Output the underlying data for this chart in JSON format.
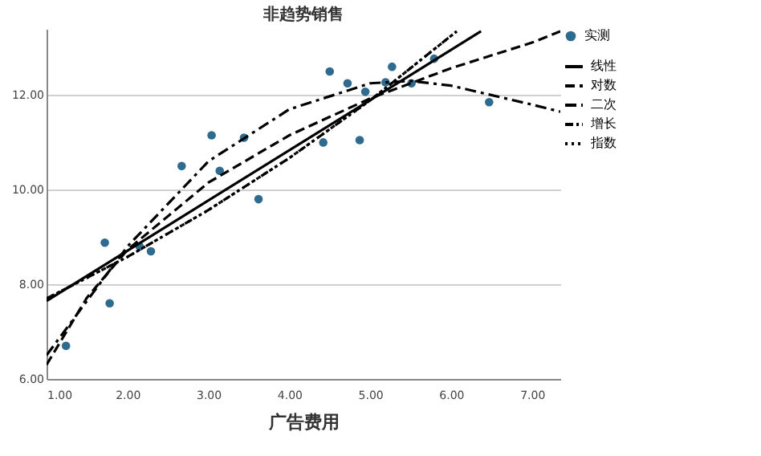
{
  "chart_data": {
    "type": "scatter",
    "title": "非趋势销售",
    "xlabel": "广告费用",
    "xlim": [
      1,
      7.35
    ],
    "ylim": [
      6,
      13.4
    ],
    "xticks": [
      {
        "value": 1,
        "label": "1.00"
      },
      {
        "value": 2,
        "label": "2.00"
      },
      {
        "value": 3,
        "label": "3.00"
      },
      {
        "value": 4,
        "label": "4.00"
      },
      {
        "value": 5,
        "label": "5.00"
      },
      {
        "value": 6,
        "label": "6.00"
      },
      {
        "value": 7,
        "label": "7.00"
      }
    ],
    "yticks": [
      {
        "value": 6,
        "label": "6.00"
      },
      {
        "value": 8,
        "label": "8.00"
      },
      {
        "value": 10,
        "label": "10.00"
      },
      {
        "value": 12,
        "label": "12.00"
      }
    ],
    "grid": "y",
    "legend": "top right",
    "series": [
      {
        "name": "实测",
        "marker": "circle",
        "color": "#2e6b8f",
        "x": [
          1.24,
          1.72,
          1.78,
          2.15,
          2.29,
          2.67,
          3.04,
          3.14,
          3.44,
          3.62,
          4.42,
          4.5,
          4.72,
          4.87,
          4.94,
          5.19,
          5.27,
          5.51,
          5.79,
          6.47
        ],
        "values": [
          6.7,
          8.88,
          7.6,
          8.8,
          8.7,
          10.5,
          11.15,
          10.4,
          11.1,
          9.8,
          11.0,
          12.5,
          12.25,
          11.05,
          12.07,
          12.27,
          12.6,
          12.25,
          12.77,
          11.85
        ]
      },
      {
        "name": "线性",
        "type": "line",
        "line_style": "solid",
        "color": "#000000",
        "x": [
          1,
          6.37
        ],
        "values": [
          7.65,
          13.35
        ]
      },
      {
        "name": "对数",
        "type": "line",
        "line_style": "dashed",
        "color": "#000000",
        "x": [
          1,
          1.5,
          2,
          3,
          4,
          5,
          6,
          7,
          7.35
        ],
        "values": [
          6.3,
          7.72,
          8.73,
          10.15,
          11.15,
          11.93,
          12.57,
          13.11,
          13.35
        ]
      },
      {
        "name": "二次",
        "type": "line",
        "line_style": "dashed",
        "color": "#000000",
        "x": [
          1,
          2,
          3,
          4,
          5,
          5.5,
          6,
          7,
          7.35
        ],
        "values": [
          6.5,
          8.8,
          10.6,
          11.7,
          12.25,
          12.3,
          12.2,
          11.8,
          11.65
        ]
      },
      {
        "name": "增长",
        "type": "line",
        "line_style": "dashed",
        "color": "#000000",
        "x": [
          1,
          2,
          3,
          4,
          5,
          6.07
        ],
        "values": [
          7.7,
          8.58,
          9.57,
          10.67,
          11.89,
          13.35
        ]
      },
      {
        "name": "指数",
        "type": "line",
        "line_style": "dotted",
        "color": "#000000",
        "x": [
          1,
          2,
          3,
          4,
          5,
          6.07
        ],
        "values": [
          7.7,
          8.58,
          9.57,
          10.67,
          11.89,
          13.35
        ]
      }
    ]
  }
}
